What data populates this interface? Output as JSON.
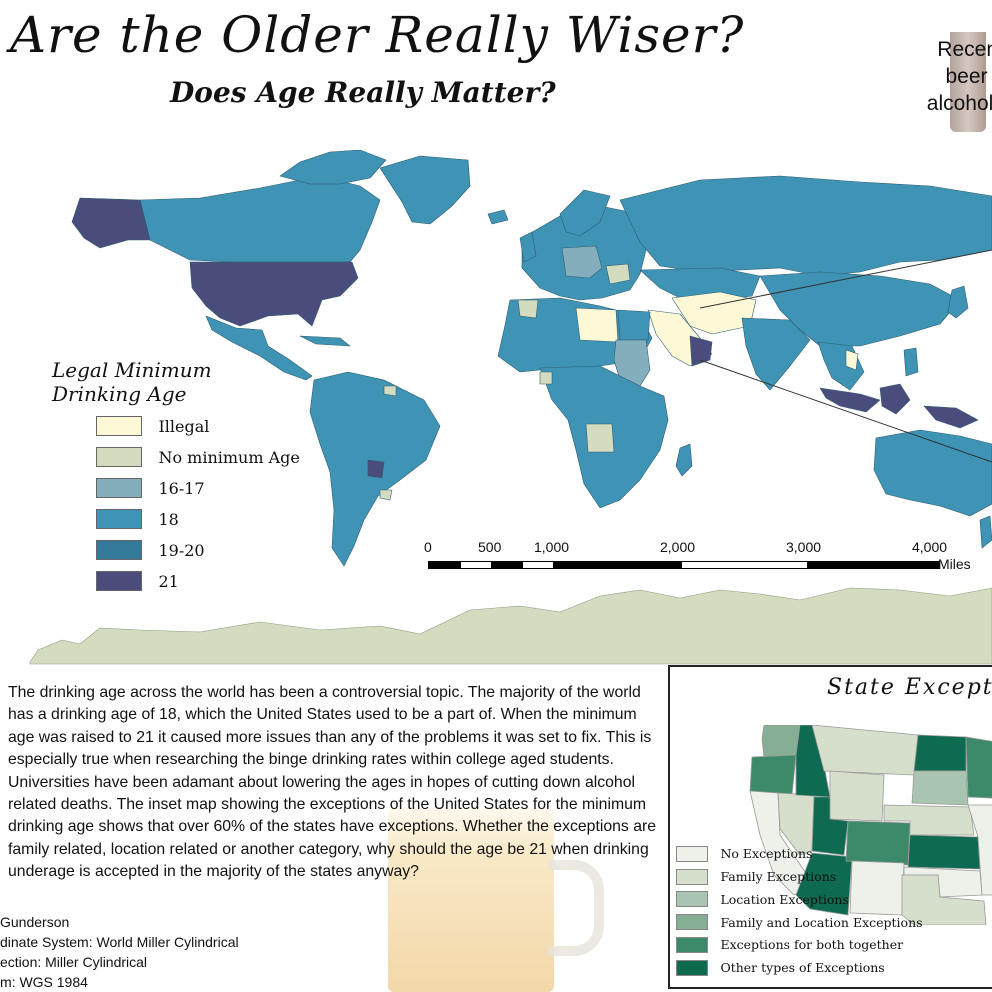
{
  "header": {
    "title": "Are the Older Really Wiser?",
    "subtitle": "Does Age Really Matter?"
  },
  "corner_note": {
    "lines": [
      "Recen",
      "beer i",
      "alcoholi"
    ]
  },
  "legend": {
    "title_line1": "Legal Minimum",
    "title_line2": "Drinking Age",
    "items": [
      {
        "label": "Illegal",
        "color": "#fdf8d6"
      },
      {
        "label": "No minimum Age",
        "color": "#d3dcbe"
      },
      {
        "label": "16-17",
        "color": "#84aebb"
      },
      {
        "label": "18",
        "color": "#3f93b4"
      },
      {
        "label": "19-20",
        "color": "#34789a"
      },
      {
        "label": "21",
        "color": "#4a4d7c"
      }
    ]
  },
  "map": {
    "antarctica_color": "#d3dcbe",
    "outline_color": "#2f5e74",
    "colors": {
      "illegal": "#fdf8d6",
      "none": "#d3dcbe",
      "teen": "#84aebb",
      "eighteen": "#3f93b4",
      "nineteen": "#34789a",
      "twentyone": "#4a4d7c"
    }
  },
  "scale_bar": {
    "ticks": [
      "0",
      "500",
      "1,000",
      "2,000",
      "3,000",
      "4,000"
    ],
    "unit": "Miles"
  },
  "essay": {
    "text": "The drinking age across the world has been a controversial topic. The majority of the world has a drinking age of 18, which the United States used to be a part of. When the minimum age was raised to 21 it caused more issues than any of the problems it was set to fix. This is especially true when researching the binge drinking rates within college aged students.  Universities have been adamant about lowering the ages in hopes of cutting down alcohol related deaths.  The inset map showing the exceptions of the United States for the minimum drinking age shows that over 60% of the states have exceptions. Whether the exceptions are family related, location related or another category, why should the age be 21 when drinking underage is accepted in the majority of the states anyway?"
  },
  "credits": {
    "author": "Gunderson",
    "coordinate_system": "dinate System: World Miller Cylindrical",
    "projection": "ection: Miller Cylindrical",
    "datum": "m: WGS 1984"
  },
  "inset": {
    "title": "State Exceptions",
    "legend": [
      {
        "label": "No Exceptions",
        "color": "#eef1ea"
      },
      {
        "label": "Family Exceptions",
        "color": "#d6dfcb"
      },
      {
        "label": "Location Exceptions",
        "color": "#a9c4b0"
      },
      {
        "label": "Family and Location Exceptions",
        "color": "#86ae94"
      },
      {
        "label": "Exceptions for both together",
        "color": "#3d8a6b"
      },
      {
        "label": "Other types of Exceptions",
        "color": "#0e6a50"
      }
    ]
  }
}
